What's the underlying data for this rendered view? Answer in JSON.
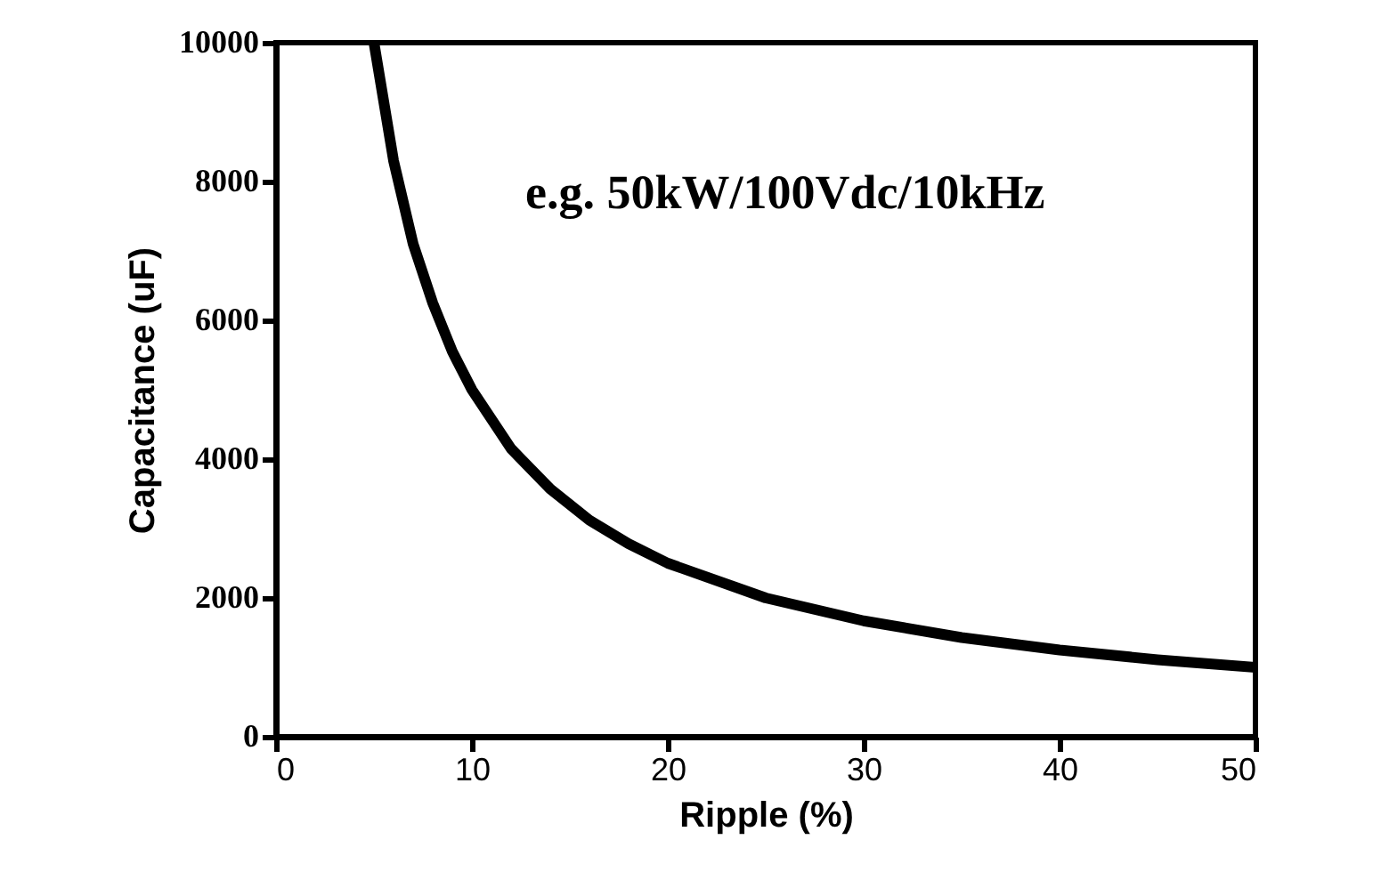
{
  "chart_data": {
    "type": "line",
    "xlabel": "Ripple (%)",
    "ylabel": "Capacitance (uF)",
    "annotations": [
      "e.g. 50kW/100Vdc/10kHz"
    ],
    "x": [
      5,
      6,
      7,
      8,
      9,
      10,
      12,
      14,
      16,
      18,
      20,
      25,
      30,
      35,
      40,
      45,
      50
    ],
    "series": [
      {
        "color": "#000000",
        "values": [
          10000,
          8300,
          7100,
          6250,
          5550,
          5000,
          4150,
          3570,
          3120,
          2780,
          2500,
          2000,
          1670,
          1430,
          1250,
          1110,
          1000
        ]
      }
    ],
    "xlim": [
      0,
      50
    ],
    "xticks": [
      0,
      10,
      20,
      30,
      40,
      50
    ],
    "ylim": [
      0,
      10000
    ],
    "yticks": [
      0,
      2000,
      4000,
      6000,
      8000,
      10000
    ],
    "grid": false,
    "legend": false,
    "marker": "none",
    "line_style": "solid"
  }
}
